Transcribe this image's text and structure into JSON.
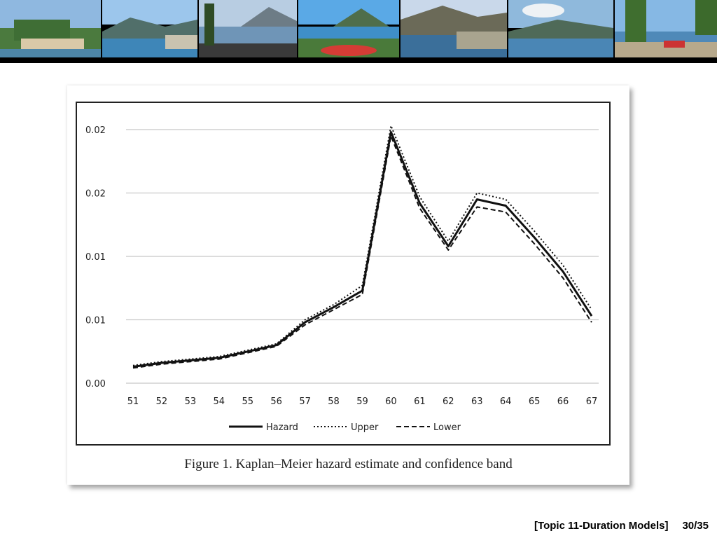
{
  "banner": {
    "photos": [
      "lakeside-village-photo",
      "lake-mountains-photo",
      "promenade-photo",
      "lakeside-garden-photo",
      "mountain-lake-photo",
      "lake-view-photo",
      "lakeside-walk-photo"
    ]
  },
  "figure": {
    "caption": "Figure 1.  Kaplan–Meier hazard estimate and confidence band"
  },
  "footer": {
    "topic": "[Topic 11-Duration Models]",
    "page": "30/35"
  },
  "chart_data": {
    "type": "line",
    "x": [
      51,
      52,
      53,
      54,
      55,
      56,
      57,
      58,
      59,
      60,
      61,
      62,
      63,
      64,
      65,
      66,
      67
    ],
    "y_tick_labels": [
      "0.00",
      "0.01",
      "0.01",
      "0.02",
      "0.02"
    ],
    "y_ticks": [
      0.0,
      0.005,
      0.01,
      0.015,
      0.02
    ],
    "ylim": [
      0.0,
      0.02
    ],
    "grid": true,
    "legend_position": "bottom",
    "series": [
      {
        "name": "Hazard",
        "style": "solid",
        "values": [
          0.0013,
          0.0016,
          0.0018,
          0.002,
          0.0025,
          0.003,
          0.0048,
          0.006,
          0.0073,
          0.0198,
          0.0142,
          0.0108,
          0.0145,
          0.014,
          0.0115,
          0.0088,
          0.0053
        ]
      },
      {
        "name": "Upper",
        "style": "dotted",
        "values": [
          0.0014,
          0.0017,
          0.0019,
          0.0021,
          0.0026,
          0.0031,
          0.005,
          0.0062,
          0.0077,
          0.0203,
          0.0147,
          0.0112,
          0.015,
          0.0145,
          0.012,
          0.0093,
          0.0058
        ]
      },
      {
        "name": "Lower",
        "style": "dashed",
        "values": [
          0.0012,
          0.0015,
          0.0017,
          0.0019,
          0.0024,
          0.0029,
          0.0046,
          0.0058,
          0.007,
          0.0195,
          0.0138,
          0.0105,
          0.0139,
          0.0135,
          0.011,
          0.0083,
          0.0048
        ]
      }
    ]
  }
}
